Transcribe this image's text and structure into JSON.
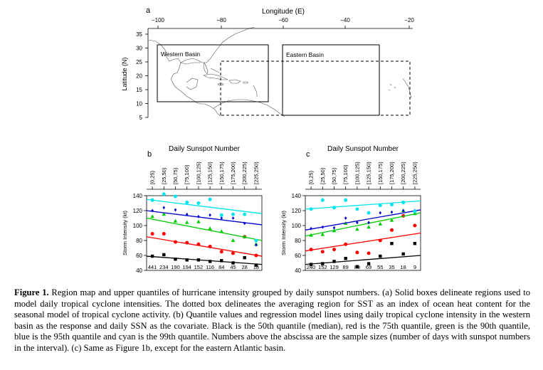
{
  "panel_a": {
    "letter": "a",
    "lon_title": "Longitude (E)",
    "lat_title": "Latitude (N)",
    "lon_ticks": [
      "−100",
      "−80",
      "−60",
      "−40",
      "−20"
    ],
    "lat_ticks": [
      "35",
      "30",
      "25",
      "20",
      "15",
      "10",
      "5"
    ],
    "western_label": "Western Basin",
    "eastern_label": "Eastern Basin"
  },
  "sunspot_title": "Daily Sunspot Number",
  "interval_labels": [
    "[0,25)",
    "[25,50)",
    "[50,75)",
    "[75,100)",
    "[100,125)",
    "[125,150)",
    "[150,175)",
    "[175,200)",
    "[200,225)",
    "[225,250)"
  ],
  "ylabel": "Storm Intensity (kt)",
  "y_ticks": [
    "140",
    "120",
    "100",
    "80",
    "60",
    "40"
  ],
  "colors": {
    "q50": "#000000",
    "q75": "#ff0000",
    "q90": "#00cc00",
    "q95": "#0000cc",
    "q99": "#00e5ee"
  },
  "chart_data": [
    {
      "type": "scatter",
      "letter": "b",
      "x_top_title": "Daily Sunspot Number",
      "categories": [
        "[0,25)",
        "[25,50)",
        "[50,75)",
        "[75,100)",
        "[100,125)",
        "[125,150)",
        "[150,175)",
        "[175,200)",
        "[200,225)",
        "[225,250)"
      ],
      "ylabel": "Storm Intensity (kt)",
      "ylim": [
        40,
        140
      ],
      "sample_sizes": [
        "441",
        "234",
        "190",
        "194",
        "152",
        "116",
        "84",
        "45",
        "28",
        "18"
      ],
      "series": [
        {
          "key": "q50",
          "marker": "square",
          "values": [
            59,
            61,
            55,
            54,
            54,
            52,
            53,
            50,
            57,
            47
          ],
          "line": [
            59,
            48
          ]
        },
        {
          "key": "q75",
          "marker": "circle",
          "values": [
            89,
            89,
            78,
            77,
            75,
            72,
            65,
            63,
            85,
            60
          ],
          "line": [
            85,
            59
          ]
        },
        {
          "key": "q90",
          "marker": "triangle",
          "values": [
            112,
            115,
            106,
            104,
            105,
            96,
            92,
            80,
            85,
            75
          ],
          "line": [
            110,
            80
          ]
        },
        {
          "key": "q95",
          "marker": "diamond",
          "values": [
            120,
            124,
            121,
            115,
            112,
            114,
            110,
            110,
            103,
            74
          ],
          "line": [
            120,
            101
          ]
        },
        {
          "key": "q99",
          "marker": "circle",
          "values": [
            134,
            142,
            139,
            131,
            130,
            135,
            114,
            115,
            115,
            80
          ],
          "line": [
            135,
            116
          ]
        }
      ]
    },
    {
      "type": "scatter",
      "letter": "c",
      "x_top_title": "Daily Sunspot Number",
      "categories": [
        "[0,25)",
        "[25,50)",
        "[50,75)",
        "[75,100)",
        "[100,125)",
        "[125,150)",
        "[150,175)",
        "[175,200)",
        "[200,225)",
        "[225,250)"
      ],
      "ylabel": "Storm Intensity (kt)",
      "ylim": [
        40,
        140
      ],
      "sample_sizes": [
        "240",
        "152",
        "129",
        "89",
        "89",
        "69",
        "55",
        "35",
        "18",
        "9"
      ],
      "series": [
        {
          "key": "q50",
          "marker": "square",
          "values": [
            48,
            49,
            52,
            56,
            45,
            49,
            59,
            76,
            62,
            76
          ],
          "line": [
            48,
            60
          ]
        },
        {
          "key": "q75",
          "marker": "circle",
          "values": [
            68,
            65,
            68,
            75,
            64,
            63,
            80,
            94,
            113,
            100
          ],
          "line": [
            66,
            90
          ]
        },
        {
          "key": "q90",
          "marker": "triangle",
          "values": [
            87,
            88,
            93,
            103,
            95,
            98,
            102,
            107,
            120,
            116
          ],
          "line": [
            86,
            117
          ]
        },
        {
          "key": "q95",
          "marker": "diamond",
          "values": [
            96,
            98,
            97,
            110,
            104,
            104,
            117,
            118,
            120,
            120
          ],
          "line": [
            94,
            121
          ]
        },
        {
          "key": "q99",
          "marker": "circle",
          "values": [
            122,
            134,
            124,
            134,
            122,
            117,
            127,
            128,
            131,
            119
          ],
          "line": [
            122,
            133
          ]
        }
      ]
    }
  ],
  "caption": {
    "label": "Figure 1.",
    "text": " Region map and upper quantiles of hurricane intensity grouped by daily sunspot numbers. (a) Solid boxes delineate regions used to model daily tropical cyclone intensities. The dotted box delineates the averaging region for SST as an index of ocean heat content for the seasonal model of tropical cyclone activity. (b) Quantile values and regression model lines using daily tropical cyclone intensity in the western basin as the response and daily SSN as the covariate. Black is the 50th quantile (median), red is the 75th quantile, green is the 90th quantile, blue is the 95th quantile and cyan is the 99th quantile. Numbers above the abscissa are the sample sizes (number of days with sunspot numbers in the interval). (c) Same as Figure 1b, except for the eastern Atlantic basin."
  }
}
